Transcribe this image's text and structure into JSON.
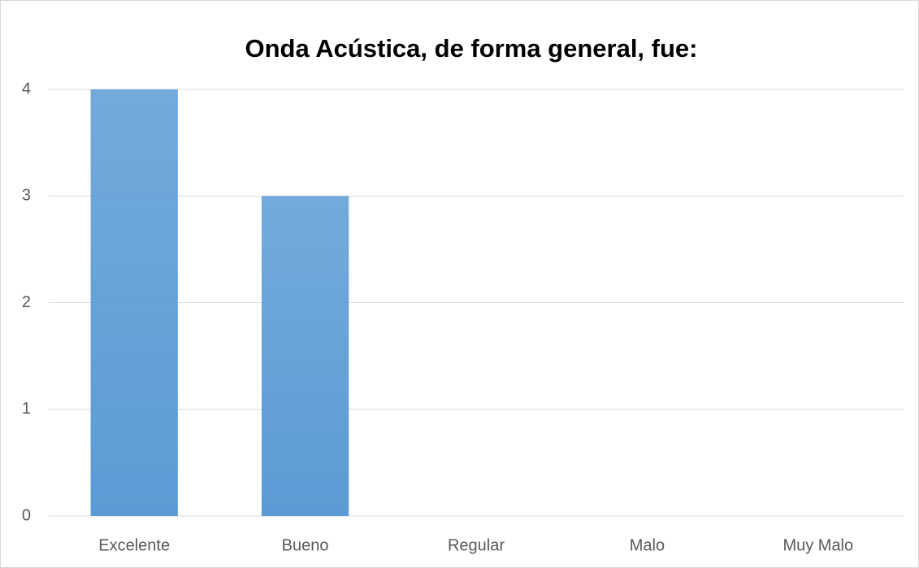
{
  "chart_data": {
    "type": "bar",
    "title": "Onda Acústica, de forma general, fue:",
    "categories": [
      "Excelente",
      "Bueno",
      "Regular",
      "Malo",
      "Muy Malo"
    ],
    "values": [
      4,
      3,
      0,
      0,
      0
    ],
    "color": "#5b9bd5",
    "ylim": [
      0,
      4
    ],
    "yticks": [
      0,
      1,
      2,
      3,
      4
    ],
    "grid": true
  }
}
